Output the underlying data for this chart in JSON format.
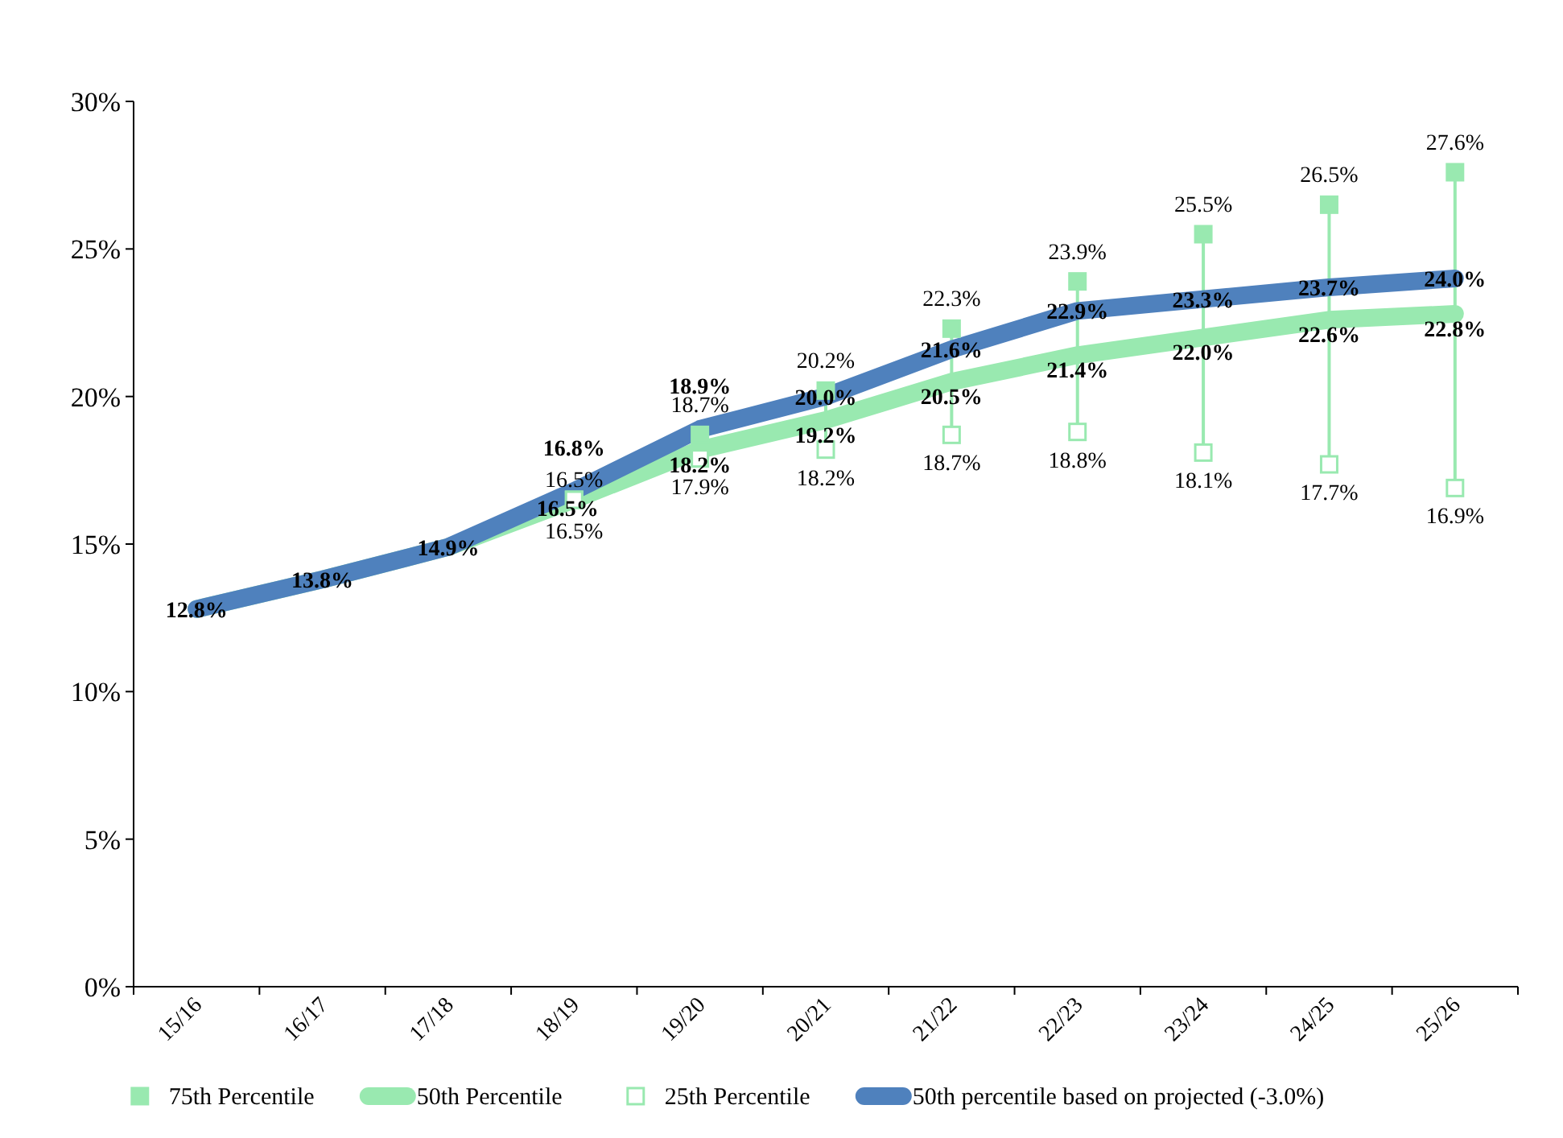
{
  "chart_data": {
    "type": "line",
    "categories": [
      "15/16",
      "16/17",
      "17/18",
      "18/19",
      "19/20",
      "20/21",
      "21/22",
      "22/23",
      "23/24",
      "24/25",
      "25/26"
    ],
    "ylim": [
      0,
      30
    ],
    "yticks": [
      {
        "value": 0,
        "label": "0%"
      },
      {
        "value": 5,
        "label": "5%"
      },
      {
        "value": 10,
        "label": "10%"
      },
      {
        "value": 15,
        "label": "15%"
      },
      {
        "value": 20,
        "label": "20%"
      },
      {
        "value": 25,
        "label": "25%"
      },
      {
        "value": 30,
        "label": "30%"
      }
    ],
    "grid": false,
    "legend": "bottom",
    "series": [
      {
        "name": "75th Percentile",
        "type": "scatter",
        "marker": "square",
        "color": "#99e9b0",
        "values": [
          null,
          null,
          null,
          16.5,
          18.7,
          20.2,
          22.3,
          23.9,
          25.5,
          26.5,
          27.6
        ],
        "value_labels": [
          null,
          null,
          null,
          "16.5%",
          "18.7%",
          "20.2%",
          "22.3%",
          "23.9%",
          "25.5%",
          "26.5%",
          "27.6%"
        ]
      },
      {
        "name": "50th Percentile",
        "color": "#99e9b0",
        "values": [
          12.8,
          13.8,
          14.9,
          16.5,
          18.2,
          19.2,
          20.5,
          21.4,
          22.0,
          22.6,
          22.8
        ],
        "value_labels": [
          null,
          null,
          null,
          "16.5%",
          "18.2%",
          "19.2%",
          "20.5%",
          "21.4%",
          "22.0%",
          "22.6%",
          "22.8%"
        ]
      },
      {
        "name": "25th Percentile",
        "type": "scatter",
        "marker": "square",
        "color": "#99e9b0",
        "values": [
          null,
          null,
          null,
          16.5,
          17.9,
          18.2,
          18.7,
          18.8,
          18.1,
          17.7,
          16.9
        ],
        "value_labels": [
          null,
          null,
          null,
          "16.5%",
          "17.9%",
          "18.2%",
          "18.7%",
          "18.8%",
          "18.1%",
          "17.7%",
          "16.9%"
        ]
      },
      {
        "name": "50th percentile based on projected (-3.0%)",
        "color": "#4f81bd",
        "values": [
          12.8,
          13.8,
          14.9,
          16.8,
          18.9,
          20.0,
          21.6,
          22.9,
          23.3,
          23.7,
          24.0
        ],
        "value_labels": [
          "12.8%",
          "13.8%",
          "14.9%",
          "16.8%",
          "18.9%",
          "20.0%",
          "21.6%",
          "22.9%",
          "23.3%",
          "23.7%",
          "24.0%"
        ]
      }
    ]
  }
}
